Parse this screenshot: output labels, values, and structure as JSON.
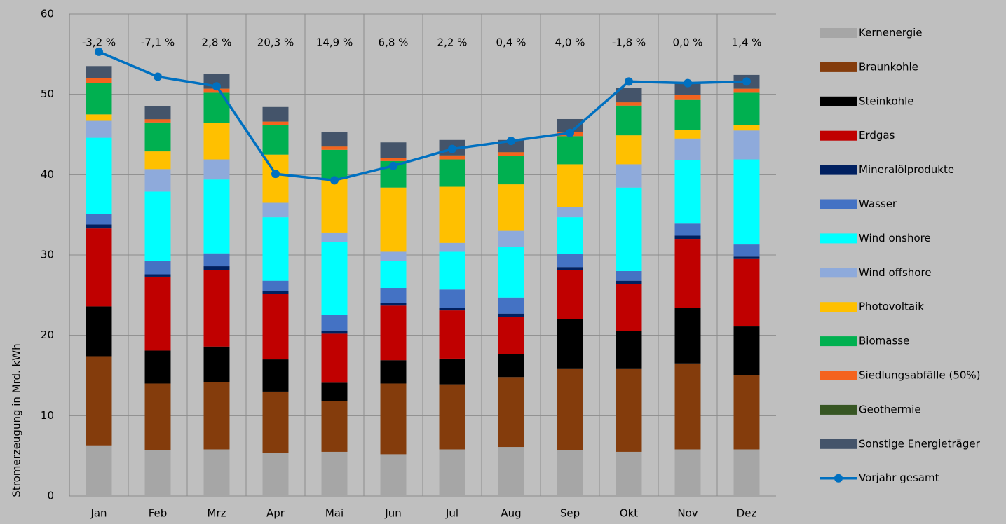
{
  "chart_data": {
    "type": "bar",
    "stacked": true,
    "y_label": "Stromerzeugung  in Mrd. kWh",
    "categories": [
      "Jan",
      "Feb",
      "Mrz",
      "Apr",
      "Mai",
      "Jun",
      "Jul",
      "Aug",
      "Sep",
      "Okt",
      "Nov",
      "Dez"
    ],
    "change_labels": [
      "-3,2 %",
      "-7,1 %",
      "2,8 %",
      "20,3 %",
      "14,9 %",
      "6,8 %",
      "2,2 %",
      "0,4 %",
      "4,0 %",
      "-1,8 %",
      "0,0 %",
      "1,4 %"
    ],
    "ylim": [
      0,
      60
    ],
    "yticks": [
      0,
      10,
      20,
      30,
      40,
      50,
      60
    ],
    "grid": true,
    "series": [
      {
        "name": "Kernenergie",
        "color": "#a6a6a6",
        "values": [
          6.3,
          5.7,
          5.8,
          5.4,
          5.5,
          5.2,
          5.8,
          6.1,
          5.7,
          5.5,
          5.8,
          5.8
        ]
      },
      {
        "name": "Braunkohle",
        "color": "#843c0c",
        "values": [
          11.1,
          8.3,
          8.4,
          7.6,
          6.3,
          8.8,
          8.1,
          8.7,
          10.1,
          10.3,
          10.7,
          9.2
        ]
      },
      {
        "name": "Steinkohle",
        "color": "#000000",
        "values": [
          6.2,
          4.1,
          4.4,
          4.0,
          2.3,
          2.9,
          3.2,
          2.9,
          6.2,
          4.7,
          6.9,
          6.1
        ]
      },
      {
        "name": "Erdgas",
        "color": "#c00000",
        "values": [
          9.7,
          9.2,
          9.5,
          8.2,
          6.1,
          6.8,
          6.0,
          4.6,
          6.1,
          5.9,
          8.6,
          8.4
        ]
      },
      {
        "name": "Mineralölprodukte",
        "color": "#002060",
        "values": [
          0.5,
          0.3,
          0.5,
          0.3,
          0.4,
          0.3,
          0.3,
          0.4,
          0.4,
          0.4,
          0.4,
          0.3
        ]
      },
      {
        "name": "Wasser",
        "color": "#4472c4",
        "values": [
          1.3,
          1.7,
          1.6,
          1.3,
          1.9,
          1.9,
          2.3,
          2.0,
          1.6,
          1.2,
          1.5,
          1.5
        ]
      },
      {
        "name": "Wind onshore",
        "color": "#00ffff",
        "values": [
          9.5,
          8.6,
          9.2,
          7.9,
          9.1,
          3.4,
          4.7,
          6.3,
          4.6,
          10.4,
          7.9,
          10.6
        ]
      },
      {
        "name": "Wind offshore",
        "color": "#8eaadb",
        "values": [
          2.1,
          2.8,
          2.5,
          1.8,
          1.2,
          1.1,
          1.1,
          2.0,
          1.3,
          2.9,
          2.7,
          3.6
        ]
      },
      {
        "name": "Photovoltaik",
        "color": "#ffc000",
        "values": [
          0.8,
          2.2,
          4.5,
          6.0,
          6.7,
          8.0,
          7.0,
          5.8,
          5.3,
          3.6,
          1.1,
          0.7
        ]
      },
      {
        "name": "Biomasse",
        "color": "#00b050",
        "values": [
          3.9,
          3.6,
          3.8,
          3.7,
          3.6,
          3.3,
          3.4,
          3.5,
          3.5,
          3.7,
          3.7,
          4.0
        ]
      },
      {
        "name": "Siedlungsabfälle (50%)",
        "color": "#f4631e",
        "values": [
          0.6,
          0.4,
          0.5,
          0.4,
          0.4,
          0.4,
          0.5,
          0.5,
          0.5,
          0.4,
          0.6,
          0.5
        ]
      },
      {
        "name": "Geothermie",
        "color": "#375623",
        "values": [
          0.02,
          0.02,
          0.02,
          0.02,
          0.02,
          0.02,
          0.02,
          0.02,
          0.02,
          0.02,
          0.02,
          0.02
        ]
      },
      {
        "name": "Sonstige Energieträger",
        "color": "#44546a",
        "values": [
          1.5,
          1.6,
          1.8,
          1.8,
          1.8,
          1.9,
          1.9,
          1.5,
          1.6,
          1.8,
          1.6,
          1.7
        ]
      },
      {
        "name": "Vorjahr gesamt",
        "color": "#0070c0",
        "type": "line",
        "values": [
          55.3,
          52.2,
          51.0,
          40.1,
          39.3,
          41.1,
          43.2,
          44.2,
          45.2,
          51.6,
          51.4,
          51.6
        ]
      }
    ]
  }
}
